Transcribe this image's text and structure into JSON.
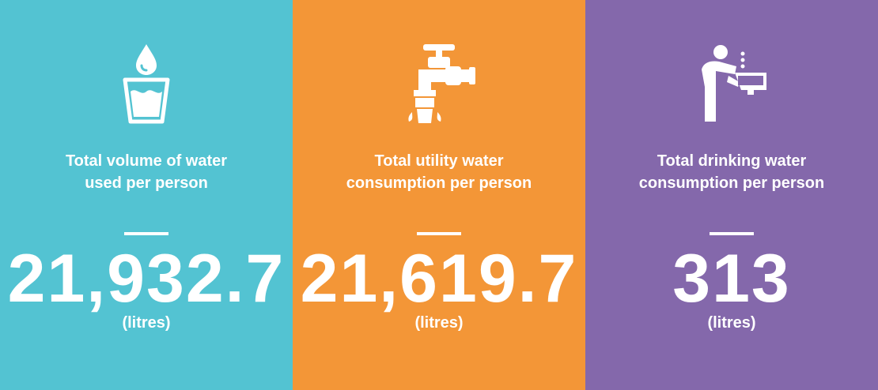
{
  "panels": [
    {
      "icon": "water-glass-icon",
      "color": "#53c3d2",
      "label_line1": "Total volume of water",
      "label_line2": "used per person",
      "value": "21,932.7",
      "unit": "(litres)"
    },
    {
      "icon": "tap-faucet-icon",
      "color": "#f39637",
      "label_line1": "Total utility water",
      "label_line2": "consumption per person",
      "value": "21,619.7",
      "unit": "(litres)"
    },
    {
      "icon": "drinking-fountain-icon",
      "color": "#8468ab",
      "label_line1": "Total drinking water",
      "label_line2": "consumption per person",
      "value": "313",
      "unit": "(litres)"
    }
  ]
}
